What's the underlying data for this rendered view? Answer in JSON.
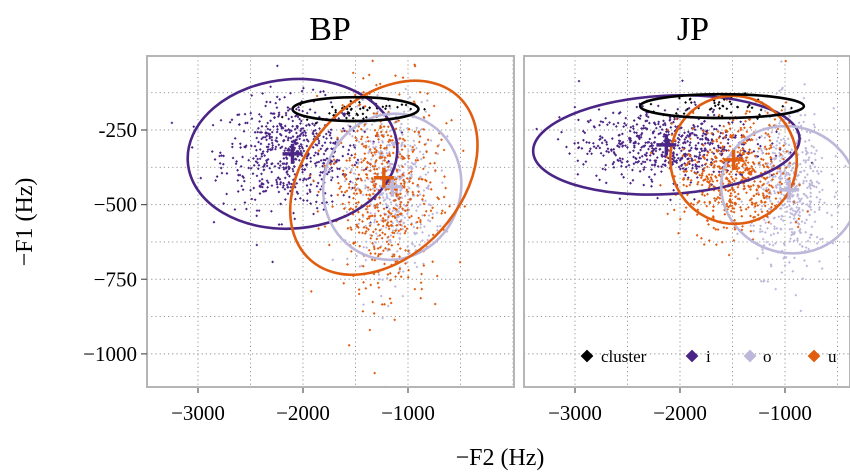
{
  "chart_data": {
    "type": "scatter",
    "xlabel": "−F2 (Hz)",
    "ylabel": "−F1 (Hz)",
    "xlim": [
      -3500,
      -400
    ],
    "ylim": [
      -1130,
      -20
    ],
    "xticks": [
      -3000,
      -2000,
      -1000
    ],
    "xtick_labels": [
      "−3000",
      "−2000",
      "−1000"
    ],
    "yticks": [
      -250,
      -500,
      -750,
      -1000
    ],
    "ytick_labels": [
      "-250",
      "−500",
      "−750",
      "−1000"
    ],
    "grid": true,
    "legend_position": "bottom-right",
    "legend": [
      {
        "label": "cluster",
        "color": "#000000"
      },
      {
        "label": "i",
        "color": "#4b2585"
      },
      {
        "label": "o",
        "color": "#bdb8da"
      },
      {
        "label": "u",
        "color": "#e05d10"
      }
    ],
    "panels": [
      {
        "title": "BP",
        "groups": [
          {
            "label": "cluster",
            "color": "#000000",
            "mean": [
              -1500,
              -180
            ],
            "ellipse": {
              "rx": 600,
              "ry": 40,
              "angle": 0
            },
            "spread": [
              250,
              20
            ],
            "n": 50
          },
          {
            "label": "i",
            "color": "#4b2585",
            "mean": [
              -2100,
              -330
            ],
            "ellipse": {
              "rx": 1000,
              "ry": 250,
              "angle": -5
            },
            "spread": [
              330,
              90
            ],
            "n": 600
          },
          {
            "label": "o",
            "color": "#bdb8da",
            "mean": [
              -1150,
              -440
            ],
            "ellipse": {
              "rx": 700,
              "ry": 230,
              "angle": -72
            },
            "spread": [
              200,
              140
            ],
            "n": 500
          },
          {
            "label": "u",
            "color": "#e05d10",
            "mean": [
              -1230,
              -410
            ],
            "ellipse": {
              "rx": 1050,
              "ry": 260,
              "angle": -48
            },
            "spread": [
              260,
              170
            ],
            "n": 550
          }
        ]
      },
      {
        "title": "JP",
        "groups": [
          {
            "label": "cluster",
            "color": "#000000",
            "mean": [
              -1600,
              -170
            ],
            "ellipse": {
              "rx": 780,
              "ry": 40,
              "angle": 0
            },
            "spread": [
              280,
              22
            ],
            "n": 50
          },
          {
            "label": "i",
            "color": "#4b2585",
            "mean": [
              -2130,
              -300
            ],
            "ellipse": {
              "rx": 1270,
              "ry": 165,
              "angle": -3
            },
            "spread": [
              420,
              60
            ],
            "n": 600
          },
          {
            "label": "o",
            "color": "#bdb8da",
            "mean": [
              -960,
              -450
            ],
            "ellipse": {
              "rx": 600,
              "ry": 230,
              "angle": -70
            },
            "spread": [
              180,
              130
            ],
            "n": 500
          },
          {
            "label": "u",
            "color": "#e05d10",
            "mean": [
              -1490,
              -350
            ],
            "ellipse": {
              "rx": 600,
              "ry": 215,
              "angle": -25
            },
            "spread": [
              260,
              90
            ],
            "n": 550
          }
        ]
      }
    ]
  }
}
